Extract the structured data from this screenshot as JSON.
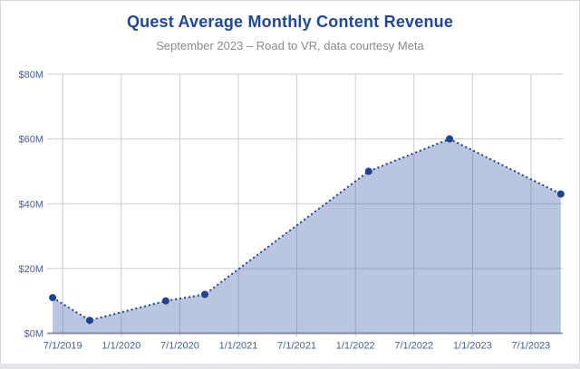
{
  "chart_data": {
    "type": "area",
    "title": "Quest Average Monthly Content Revenue",
    "subtitle": "September 2023 – Road to VR, data courtesy Meta",
    "units": "USD millions per month",
    "ylim": [
      0,
      80
    ],
    "grid": true,
    "legend": false,
    "x_axis_note": "timeline from Quest launch (~May 2019) to ~October 2023; m = months after axis start",
    "x_range_months": [
      0,
      52.4
    ],
    "y_ticks": [
      {
        "label": "$0M",
        "value": 0
      },
      {
        "label": "$20M",
        "value": 20
      },
      {
        "label": "$40M",
        "value": 40
      },
      {
        "label": "$60M",
        "value": 60
      },
      {
        "label": "$80M",
        "value": 80
      }
    ],
    "x_ticks": [
      {
        "label": "7/1/2019",
        "m": 1.14
      },
      {
        "label": "1/1/2020",
        "m": 7.14
      },
      {
        "label": "7/1/2020",
        "m": 13.14
      },
      {
        "label": "1/1/2021",
        "m": 19.14
      },
      {
        "label": "7/1/2021",
        "m": 25.14
      },
      {
        "label": "1/1/2022",
        "m": 31.14
      },
      {
        "label": "7/1/2022",
        "m": 37.14
      },
      {
        "label": "1/1/2023",
        "m": 43.14
      },
      {
        "label": "7/1/2023",
        "m": 49.14
      }
    ],
    "points": [
      {
        "approx_date": "6/2019",
        "m": 0.1,
        "value": 11
      },
      {
        "approx_date": "9/2019",
        "m": 3.9,
        "value": 4
      },
      {
        "approx_date": "5/2020",
        "m": 11.7,
        "value": 10
      },
      {
        "approx_date": "9/2020",
        "m": 15.7,
        "value": 12
      },
      {
        "approx_date": "2/2022",
        "m": 32.5,
        "value": 50
      },
      {
        "approx_date": "10/2022",
        "m": 40.8,
        "value": 60
      },
      {
        "approx_date": "9/2023",
        "m": 52.2,
        "value": 43
      }
    ]
  },
  "colors": {
    "title": "#1e47a3",
    "subtitle": "#8a8a8a",
    "axis_label": "#425f9e",
    "grid": "#cccccc",
    "baseline": "#9a9a9a",
    "line": "#1e4296",
    "dot": "#1e4296",
    "fill": "#3f5ea8",
    "fill_opacity": "0.36"
  }
}
